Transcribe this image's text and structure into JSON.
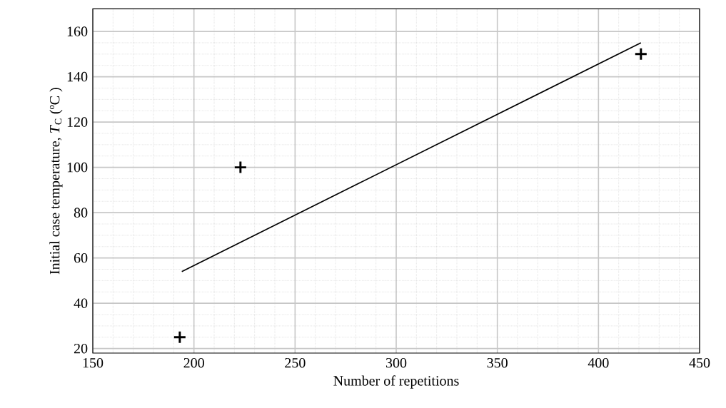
{
  "chart_data": {
    "type": "scatter",
    "xlabel": "Number of repetitions",
    "ylabel": "Initial case temperature, *T*$_{C}$ (ºC )",
    "xlim": [
      150,
      450
    ],
    "ylim": [
      18,
      170
    ],
    "xticks": [
      150,
      200,
      250,
      300,
      350,
      400,
      450
    ],
    "yticks": [
      20,
      40,
      60,
      80,
      100,
      120,
      140,
      160
    ],
    "grid": true,
    "series": [
      {
        "color": "#000000",
        "marker": "cross",
        "x": [
          193,
          223,
          421
        ],
        "values": [
          25,
          100,
          150
        ]
      },
      {
        "type": "line",
        "color": "#000000",
        "marker": "none",
        "x": [
          194,
          421
        ],
        "values": [
          54,
          155
        ],
        "line_style": "solid"
      }
    ]
  }
}
